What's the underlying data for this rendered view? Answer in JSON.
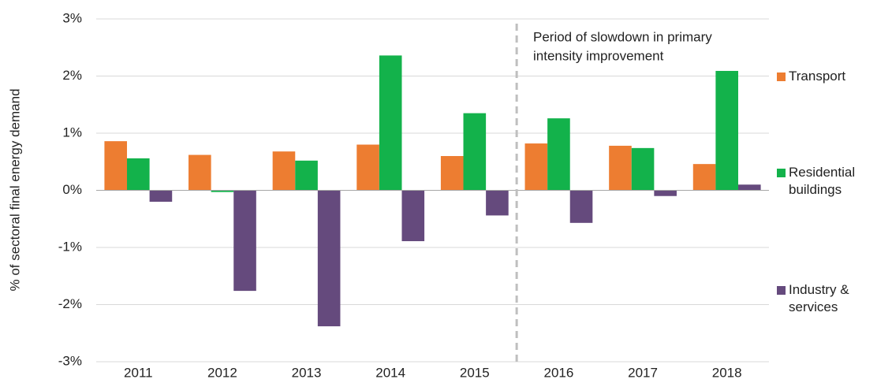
{
  "chart_data": {
    "type": "bar",
    "y_label": "% of sectoral final energy demand",
    "annotation": [
      "Period of slowdown in primary",
      "intensity improvement"
    ],
    "categories": [
      "2011",
      "2012",
      "2013",
      "2014",
      "2015",
      "2016",
      "2017",
      "2018"
    ],
    "series": [
      {
        "name": "Transport",
        "color": "#ed7d31",
        "values": [
          0.86,
          0.62,
          0.68,
          0.8,
          0.6,
          0.82,
          0.78,
          0.46
        ]
      },
      {
        "name": "Residential buildings",
        "color": "#13b24b",
        "values": [
          0.56,
          -0.03,
          0.52,
          2.36,
          1.35,
          1.26,
          0.74,
          2.09
        ]
      },
      {
        "name": "Industry & services",
        "color": "#654a7d",
        "values": [
          -0.2,
          -1.76,
          -2.38,
          -0.89,
          -0.44,
          -0.57,
          -0.1,
          0.1
        ]
      }
    ],
    "ylim": [
      -3,
      3
    ],
    "yticks": [
      {
        "value": -3,
        "label": "-3%"
      },
      {
        "value": -2,
        "label": "-2%"
      },
      {
        "value": -1,
        "label": "-1%"
      },
      {
        "value": 0,
        "label": "0%"
      },
      {
        "value": 1,
        "label": "1%"
      },
      {
        "value": 2,
        "label": "2%"
      },
      {
        "value": 3,
        "label": "3%"
      }
    ],
    "grid": true,
    "legend": "right"
  }
}
